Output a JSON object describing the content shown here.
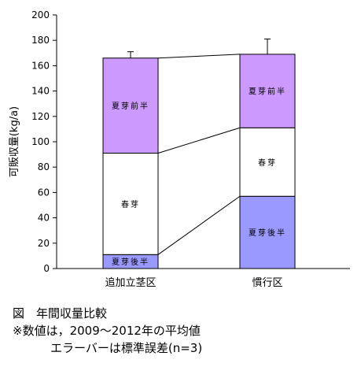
{
  "chart_data": {
    "type": "bar",
    "stacked": true,
    "categories": [
      "追加立茎区",
      "慣行区"
    ],
    "ylabel": "可販収量(kg/a)",
    "ylim": [
      0,
      200
    ],
    "yticks": [
      0,
      20,
      40,
      60,
      80,
      100,
      120,
      140,
      160,
      180,
      200
    ],
    "grid": false,
    "legend": "none",
    "series": [
      {
        "name": "夏芽後半",
        "values": [
          11,
          57
        ],
        "color": "#9999ff"
      },
      {
        "name": "春芽",
        "values": [
          80,
          54
        ],
        "color": "#ffffff"
      },
      {
        "name": "夏芽前半",
        "values": [
          75,
          58
        ],
        "color": "#cc99ff"
      }
    ],
    "totals": [
      166,
      169
    ],
    "error_bars": [
      5,
      12
    ],
    "connector_lines": true
  },
  "captions": {
    "line1": "図　年間収量比較",
    "line2": "※数値は，2009～2012年の平均値",
    "line3": "エラーバーは標準誤差(n=3)"
  }
}
